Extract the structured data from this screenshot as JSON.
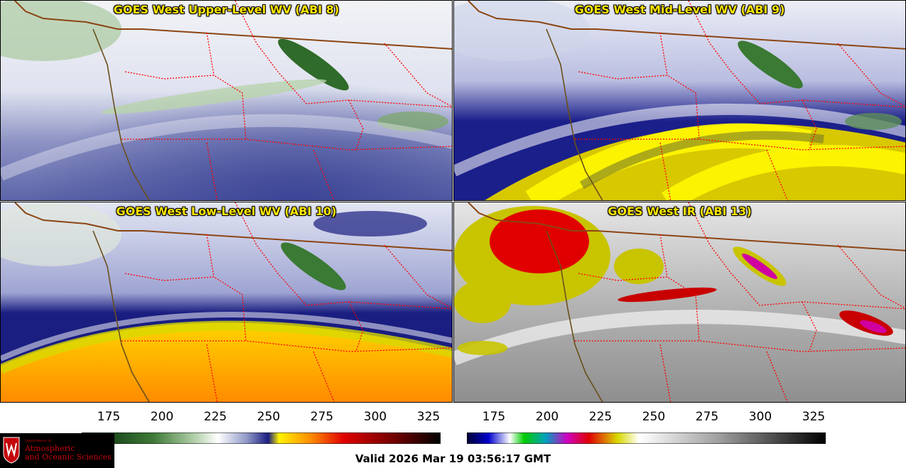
{
  "panels": [
    {
      "title": "GOES West Upper-Level WV (ABI 8)"
    },
    {
      "title": "GOES West Mid-Level WV (ABI 9)"
    },
    {
      "title": "GOES West Low-Level WV (ABI 10)"
    },
    {
      "title": "GOES West IR (ABI 13)"
    }
  ],
  "colorbars": {
    "left": {
      "ticks": [
        "175",
        "200",
        "225",
        "250",
        "275",
        "300",
        "325"
      ]
    },
    "right": {
      "ticks": [
        "175",
        "200",
        "225",
        "250",
        "275",
        "300",
        "325"
      ]
    }
  },
  "logo": {
    "line1": "Department of",
    "line2": "Atmospheric",
    "line3": "and Oceanic Sciences"
  },
  "valid_time": "Valid 2026 Mar 19 03:56:17 GMT",
  "colors": {
    "border_country": "#8b4513",
    "border_state": "#ff0000",
    "coast": "#6b4f1a",
    "title": "#ffe600"
  }
}
